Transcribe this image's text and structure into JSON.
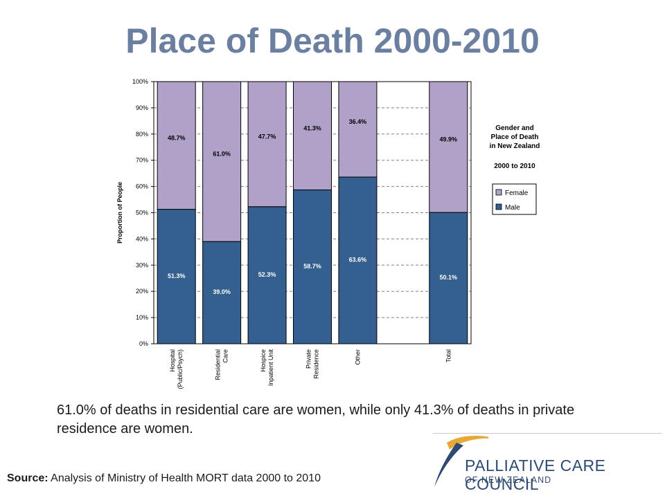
{
  "slide": {
    "title": "Place of Death 2000-2010",
    "caption": "61.0% of deaths in residential care are women, while only 41.3% of deaths in private residence are women.",
    "source_label": "Source:",
    "source_text": "Analysis of Ministry of Health MORT data 2000 to 2010",
    "logo_name": "PALLIATIVE CARE COUNCIL",
    "logo_sub": "OF NEW ZEALAND",
    "logo_colors": {
      "swoosh": "#e8a838",
      "text": "#2e4a72"
    }
  },
  "chart_data": {
    "type": "bar",
    "stacked": true,
    "categories": [
      "Hospital\n(Public/Psych)",
      "Residential\nCare",
      "Hospice\nInpatient Unit",
      "Private\nResidence",
      "Other",
      "",
      "Total"
    ],
    "series": [
      {
        "name": "Male",
        "color": "#33608f",
        "values": [
          51.3,
          39.0,
          52.3,
          58.7,
          63.6,
          null,
          50.1
        ],
        "labels": [
          "51.3%",
          "39.0%",
          "52.3%",
          "58.7%",
          "63.6%",
          "",
          "50.1%"
        ]
      },
      {
        "name": "Female",
        "color": "#b0a1c9",
        "values": [
          48.7,
          61.0,
          47.7,
          41.3,
          36.4,
          null,
          49.9
        ],
        "labels": [
          "48.7%",
          "61.0%",
          "47.7%",
          "41.3%",
          "36.4%",
          "",
          "49.9%"
        ]
      }
    ],
    "ylabel": "Proportion of People",
    "xlabel": "",
    "ylim": [
      0,
      100
    ],
    "yticks": [
      "0%",
      "10%",
      "20%",
      "30%",
      "40%",
      "50%",
      "60%",
      "70%",
      "80%",
      "90%",
      "100%"
    ],
    "grid": true,
    "legend": {
      "placement": "right",
      "entries": [
        "Female",
        "Male"
      ]
    },
    "annotation": {
      "lines": [
        "Gender and",
        "Place of Death",
        "in New Zealand"
      ],
      "subtitle": "2000 to 2010"
    }
  }
}
